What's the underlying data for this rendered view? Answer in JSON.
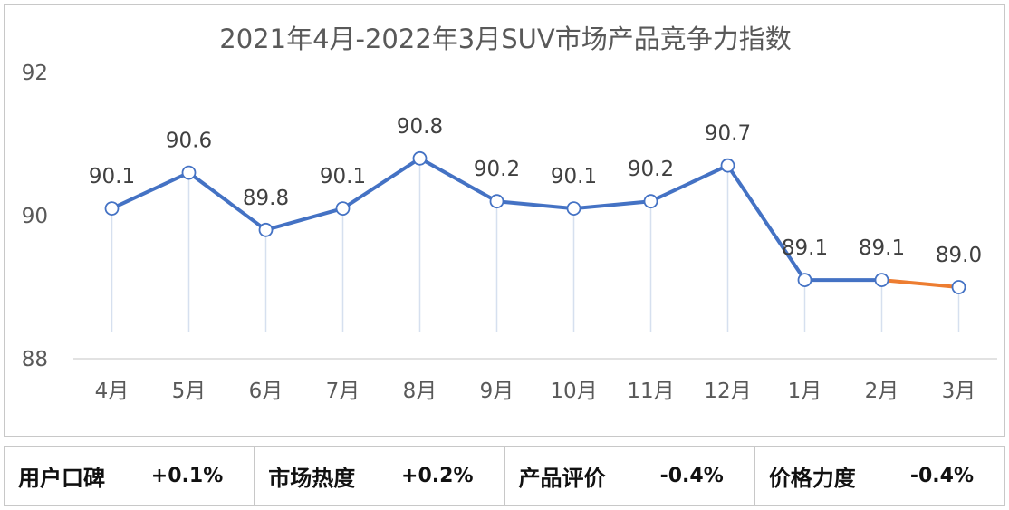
{
  "chart_data": {
    "type": "line",
    "title": "2021年4月-2022年3月SUV市场产品竞争力指数",
    "categories": [
      "4月",
      "5月",
      "6月",
      "7月",
      "8月",
      "9月",
      "10月",
      "11月",
      "12月",
      "1月",
      "2月",
      "3月"
    ],
    "series": [
      {
        "values": [
          90.1,
          90.6,
          89.8,
          90.1,
          90.8,
          90.2,
          90.1,
          90.2,
          90.7,
          89.1,
          89.1,
          89.0
        ]
      }
    ],
    "data_labels": [
      "90.1",
      "90.6",
      "89.8",
      "90.1",
      "90.8",
      "90.2",
      "90.1",
      "90.2",
      "90.7",
      "89.1",
      "89.1",
      "89.0"
    ],
    "y_ticks": [
      "88",
      "90",
      "92"
    ],
    "ylim": [
      88,
      92
    ],
    "xlabel": "",
    "ylabel": "",
    "grid": false,
    "colors": {
      "line": "#4472c4",
      "last_segment": "#ed7d31",
      "marker_fill": "#ffffff",
      "drop_line": "#d6e0ef"
    }
  },
  "stats": [
    {
      "name": "用户口碑",
      "value": "+0.1%"
    },
    {
      "name": "市场热度",
      "value": "+0.2%"
    },
    {
      "name": "产品评价",
      "value": "-0.4%"
    },
    {
      "name": "价格力度",
      "value": "-0.4%"
    }
  ]
}
